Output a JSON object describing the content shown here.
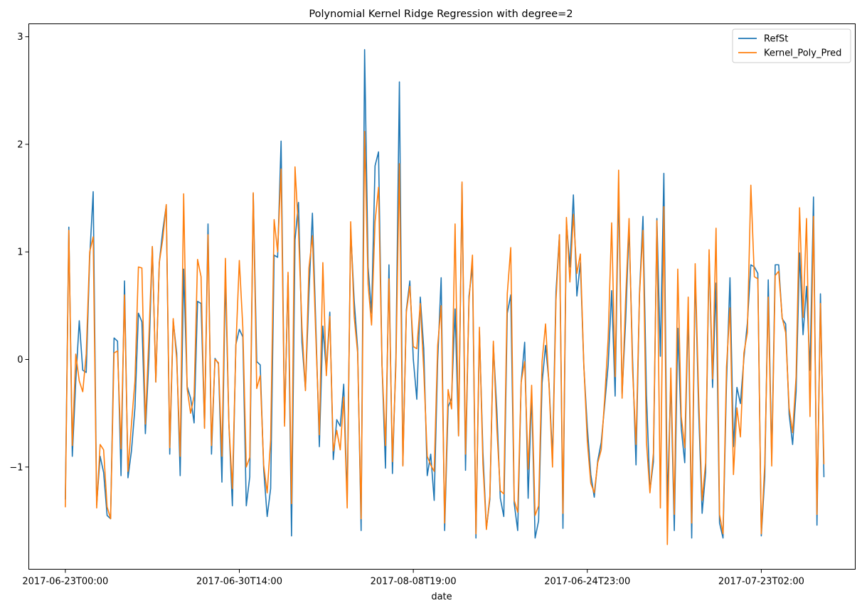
{
  "chart_data": {
    "type": "line",
    "title": "Polynomial Kernel Ridge Regression with degree=2",
    "xlabel": "date",
    "ylabel": "",
    "x_ticks": [
      {
        "index": 0,
        "label": "2017-06-23T00:00"
      },
      {
        "index": 50,
        "label": "2017-06-30T14:00"
      },
      {
        "index": 100,
        "label": "2017-08-08T19:00"
      },
      {
        "index": 150,
        "label": "2017-06-24T23:00"
      },
      {
        "index": 200,
        "label": "2017-07-23T02:00"
      }
    ],
    "y_ticks": [
      -1,
      0,
      1,
      2,
      3
    ],
    "ylim": [
      -1.95,
      3.12
    ],
    "xlim": [
      -10.5,
      227
    ],
    "grid": false,
    "legend_position": "top-right",
    "series": [
      {
        "name": "RefSt",
        "color": "#1f77b4",
        "values": [
          -1.3,
          1.23,
          -0.9,
          -0.2,
          0.36,
          -0.1,
          -0.12,
          0.95,
          1.56,
          -1.35,
          -0.9,
          -1.05,
          -1.45,
          -1.48,
          0.2,
          0.17,
          -1.08,
          0.73,
          -1.1,
          -0.85,
          -0.45,
          0.43,
          0.35,
          -0.69,
          0.0,
          1.05,
          -0.21,
          0.9,
          1.2,
          1.43,
          -0.88,
          0.36,
          0.06,
          -1.08,
          0.84,
          -0.25,
          -0.36,
          -0.59,
          0.54,
          0.52,
          -0.63,
          1.26,
          -0.88,
          0.01,
          -0.04,
          -1.14,
          0.78,
          -0.6,
          -1.36,
          0.14,
          0.28,
          0.21,
          -1.36,
          -1.09,
          1.54,
          -0.02,
          -0.05,
          -1.02,
          -1.46,
          -1.2,
          0.97,
          0.95,
          2.03,
          -0.59,
          0.78,
          -1.64,
          1.11,
          1.46,
          0.16,
          -0.28,
          0.61,
          1.36,
          0.3,
          -0.81,
          0.31,
          -0.11,
          0.44,
          -0.93,
          -0.56,
          -0.62,
          -0.23,
          -1.3,
          1.21,
          0.55,
          0.1,
          -1.59,
          2.88,
          0.86,
          0.43,
          1.8,
          1.93,
          -0.05,
          -1.01,
          0.88,
          -1.06,
          0.02,
          2.58,
          -0.98,
          0.46,
          0.73,
          0.0,
          -0.37,
          0.58,
          0.1,
          -1.08,
          -0.88,
          -1.31,
          -0.01,
          0.76,
          -1.59,
          -0.44,
          -0.36,
          0.47,
          -0.71,
          1.63,
          -1.03,
          0.59,
          0.87,
          -1.66,
          0.26,
          -0.86,
          -1.57,
          -1.3,
          0.14,
          -0.47,
          -1.29,
          -1.46,
          0.43,
          0.6,
          -1.34,
          -1.59,
          -0.21,
          0.16,
          -1.29,
          -0.32,
          -1.66,
          -1.5,
          -0.22,
          0.13,
          -0.22,
          -0.92,
          0.63,
          1.16,
          -1.57,
          1.28,
          0.86,
          1.53,
          0.59,
          0.9,
          -0.06,
          -0.63,
          -1.07,
          -1.28,
          -0.94,
          -0.77,
          -0.42,
          -0.05,
          0.64,
          -0.34,
          1.6,
          -0.32,
          0.35,
          1.24,
          0.01,
          -0.98,
          0.62,
          1.33,
          -0.33,
          -1.22,
          -0.95,
          1.31,
          0.03,
          1.73,
          -1.36,
          -0.19,
          -1.59,
          0.29,
          -0.64,
          -0.96,
          0.48,
          -1.66,
          0.81,
          -0.48,
          -1.43,
          -1.05,
          0.97,
          -0.26,
          0.71,
          -1.52,
          -1.66,
          -0.22,
          0.76,
          -0.81,
          -0.26,
          -0.41,
          0.01,
          0.34,
          0.88,
          0.86,
          0.8,
          -1.64,
          -1.09,
          0.74,
          -0.93,
          0.88,
          0.88,
          0.38,
          0.33,
          -0.51,
          -0.79,
          -0.3,
          0.99,
          0.23,
          0.68,
          -0.1,
          1.51,
          -1.54,
          0.61,
          -1.09
        ]
      },
      {
        "name": "Kernel_Poly_Pred",
        "color": "#ff7f0e",
        "values": [
          -1.37,
          1.2,
          -0.8,
          0.05,
          -0.2,
          -0.3,
          0.05,
          1.0,
          1.14,
          -1.38,
          -0.79,
          -0.84,
          -1.37,
          -1.48,
          0.06,
          0.08,
          -0.83,
          0.6,
          -1.04,
          -0.6,
          -0.2,
          0.86,
          0.85,
          -0.6,
          0.2,
          1.05,
          -0.21,
          0.9,
          1.12,
          1.44,
          -0.82,
          0.38,
          0.0,
          -0.9,
          1.54,
          -0.27,
          -0.5,
          -0.34,
          0.93,
          0.77,
          -0.64,
          1.16,
          -0.8,
          0.0,
          -0.03,
          -0.9,
          0.94,
          -0.6,
          -1.2,
          0.11,
          0.92,
          0.3,
          -1.0,
          -0.91,
          1.55,
          -0.27,
          -0.15,
          -0.98,
          -1.24,
          -0.75,
          1.3,
          1.0,
          1.77,
          -0.62,
          0.81,
          -1.34,
          1.79,
          1.2,
          0.3,
          -0.29,
          0.85,
          1.15,
          0.2,
          -0.7,
          0.9,
          -0.15,
          0.4,
          -0.85,
          -0.66,
          -0.84,
          -0.35,
          -1.38,
          1.28,
          0.4,
          0.06,
          -1.48,
          2.12,
          0.7,
          0.32,
          1.28,
          1.6,
          -0.05,
          -0.8,
          0.75,
          -0.95,
          -0.05,
          1.82,
          -0.99,
          0.44,
          0.68,
          0.12,
          0.1,
          0.52,
          -0.1,
          -0.9,
          -0.98,
          -1.04,
          0.13,
          0.5,
          -1.52,
          -0.28,
          -0.46,
          1.26,
          -0.71,
          1.65,
          -0.88,
          0.55,
          0.97,
          -1.62,
          0.3,
          -0.97,
          -1.58,
          -1.27,
          0.17,
          -0.64,
          -1.22,
          -1.25,
          0.61,
          1.04,
          -1.31,
          -1.42,
          -0.21,
          -0.02,
          -1.02,
          -0.24,
          -1.45,
          -1.36,
          -0.02,
          0.33,
          -0.24,
          -1.0,
          0.55,
          1.16,
          -1.43,
          1.32,
          0.72,
          1.35,
          0.8,
          0.98,
          -0.05,
          -0.76,
          -1.15,
          -1.24,
          -0.96,
          -0.84,
          -0.36,
          0.2,
          1.27,
          -0.16,
          1.76,
          -0.36,
          0.55,
          1.31,
          -0.09,
          -0.79,
          0.6,
          1.2,
          -0.77,
          -1.24,
          -0.87,
          1.29,
          -1.38,
          1.42,
          -1.72,
          -0.08,
          -1.44,
          0.84,
          -0.53,
          -0.82,
          0.58,
          -1.52,
          0.89,
          -0.34,
          -1.31,
          -0.96,
          1.02,
          -0.18,
          1.22,
          -1.44,
          -1.62,
          -0.07,
          0.48,
          -1.07,
          -0.45,
          -0.72,
          0.06,
          0.25,
          1.62,
          0.77,
          0.75,
          -1.62,
          -0.97,
          0.58,
          -0.99,
          0.78,
          0.82,
          0.39,
          0.25,
          -0.45,
          -0.68,
          -0.16,
          1.41,
          0.39,
          1.31,
          -0.53,
          1.33,
          -1.44,
          0.52,
          -0.97
        ]
      }
    ]
  }
}
